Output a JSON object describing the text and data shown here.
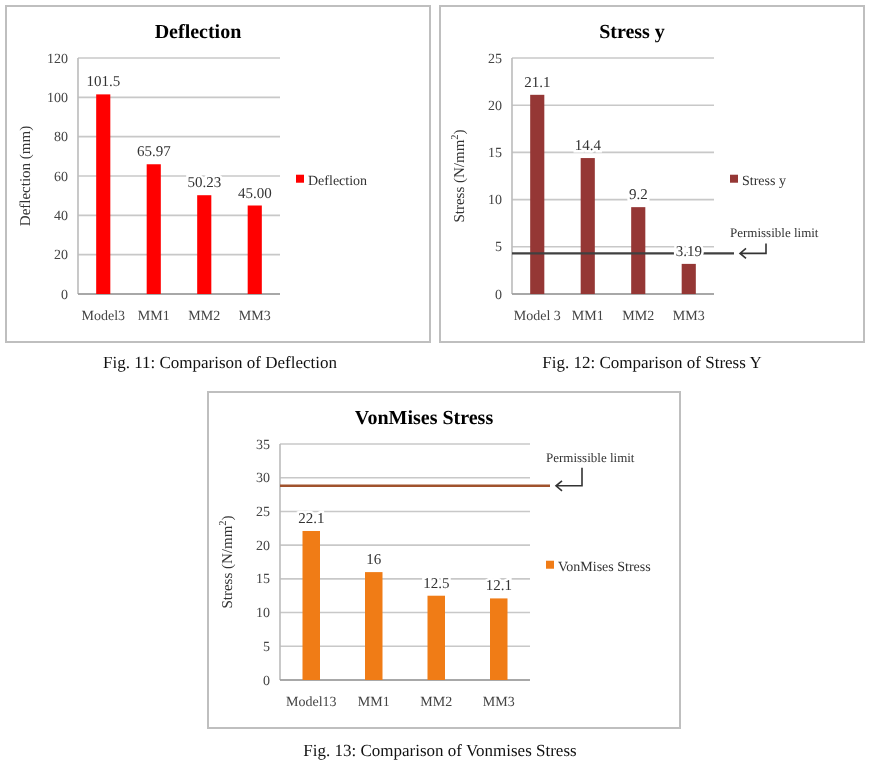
{
  "chart_data": [
    {
      "type": "bar",
      "title": "Deflection",
      "ylabel": "Deflection (mm)",
      "categories": [
        "Model3",
        "MM1",
        "MM2",
        "MM3"
      ],
      "series": [
        {
          "name": "Deflection",
          "color": "#ff0000",
          "values": [
            101.5,
            65.97,
            50.23,
            45.0
          ],
          "value_labels": [
            "101.5",
            "65.97",
            "50.23",
            "45.00"
          ]
        }
      ],
      "ylim": [
        0,
        120
      ],
      "yticks": [
        0,
        20,
        40,
        60,
        80,
        100,
        120
      ],
      "grid": "y",
      "legend": "right",
      "annotations": [
        "Fig. 11: Comparison of Deflection"
      ]
    },
    {
      "type": "bar",
      "title": "Stress y",
      "ylabel": "Stress (N/mm$^{2}$)",
      "categories": [
        "Model 3",
        "MM1",
        "MM2",
        "MM3"
      ],
      "series": [
        {
          "name": "Stress y",
          "color": "#953735",
          "values": [
            21.1,
            14.4,
            9.2,
            3.19
          ]
        }
      ],
      "data_labels": true,
      "ylim": [
        0,
        25
      ],
      "yticks": [
        0,
        5,
        10,
        15,
        20,
        25
      ],
      "grid": "y",
      "legend": "right",
      "ref_lines": [
        {
          "axis": "y",
          "value": 4.3,
          "label": "Permissible limit",
          "color": "#404040"
        }
      ],
      "annotations": [
        "Fig. 12: Comparison of Stress  Y"
      ]
    },
    {
      "type": "bar",
      "title": "VonMises Stress",
      "ylabel": "Stress (N/mm$^{2}$)",
      "categories": [
        "Model13",
        "MM1",
        "MM2",
        "MM3"
      ],
      "series": [
        {
          "name": "VonMises Stress",
          "color": "#f07c16",
          "values": [
            22.1,
            16,
            12.5,
            12.1
          ]
        }
      ],
      "data_labels": true,
      "ylim": [
        0,
        35
      ],
      "yticks": [
        0,
        5,
        10,
        15,
        20,
        25,
        30,
        35
      ],
      "grid": "y",
      "legend": "right",
      "ref_lines": [
        {
          "axis": "y",
          "value": 28.8,
          "label": "Permissible limit",
          "color": "#a0522d"
        }
      ],
      "annotations": [
        "Fig. 13: Comparison of Vonmises Stress"
      ]
    }
  ]
}
